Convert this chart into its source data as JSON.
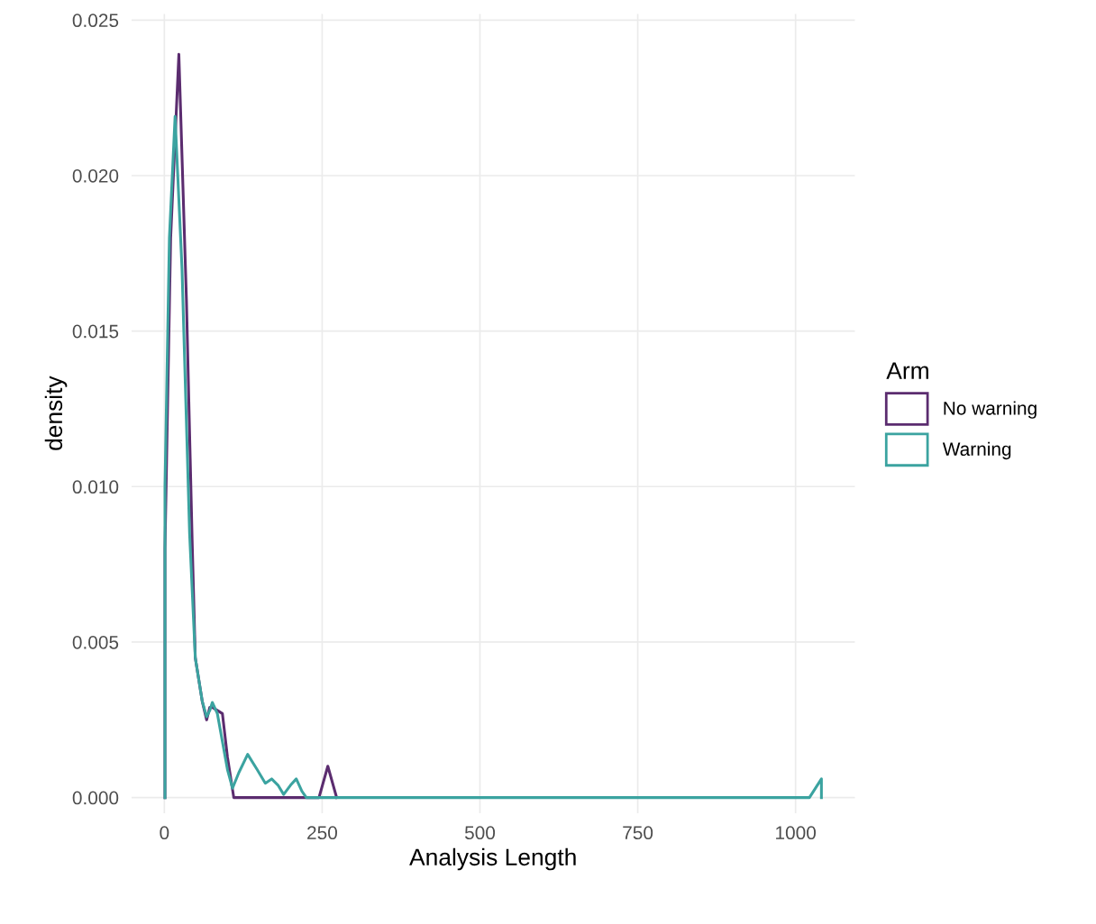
{
  "chart_data": {
    "type": "line",
    "xlabel": "Analysis Length",
    "ylabel": "density",
    "legend_title": "Arm",
    "legend": "right",
    "grid": true,
    "line_style": "solid",
    "xlim": [
      -52,
      1094
    ],
    "ylim": [
      -0.0005,
      0.0252
    ],
    "xticks": [
      0,
      250,
      500,
      750,
      1000
    ],
    "yticks": [
      {
        "value": 0,
        "label": "0.000"
      },
      {
        "value": 0.005,
        "label": "0.005"
      },
      {
        "value": 0.01,
        "label": "0.010"
      },
      {
        "value": 0.015,
        "label": "0.015"
      },
      {
        "value": 0.02,
        "label": "0.020"
      },
      {
        "value": 0.025,
        "label": "0.025"
      }
    ],
    "series": [
      {
        "name": "No warning",
        "color": "#5b2c6f",
        "x": [
          1,
          1,
          10,
          23,
          35,
          44,
          49,
          60,
          67,
          72,
          76,
          84,
          92,
          100,
          110,
          245,
          259,
          273
        ],
        "values": [
          0,
          0.008,
          0.018,
          0.0239,
          0.016,
          0.0083,
          0.0045,
          0.0031,
          0.0025,
          0.0029,
          0.0029,
          0.0028,
          0.0027,
          0.0013,
          0,
          0,
          0.00101,
          0
        ]
      },
      {
        "name": "Warning",
        "color": "#3ba3a0",
        "x": [
          1,
          1,
          8,
          17,
          28,
          40,
          49,
          60,
          67,
          72,
          76,
          84,
          92,
          100,
          108,
          118,
          132,
          147,
          160,
          170,
          180,
          189,
          200,
          209,
          218,
          225,
          1022,
          1041,
          1041
        ],
        "values": [
          0,
          0.01,
          0.018,
          0.0219,
          0.017,
          0.0085,
          0.0045,
          0.0031,
          0.0026,
          0.0028,
          0.00306,
          0.0027,
          0.0018,
          0.0009,
          0.0003,
          0.0008,
          0.00139,
          0.0009,
          0.00046,
          0.0006,
          0.0004,
          0.0001,
          0.0004,
          0.0006,
          0.0002,
          0,
          0,
          0.0006,
          0
        ]
      }
    ]
  }
}
